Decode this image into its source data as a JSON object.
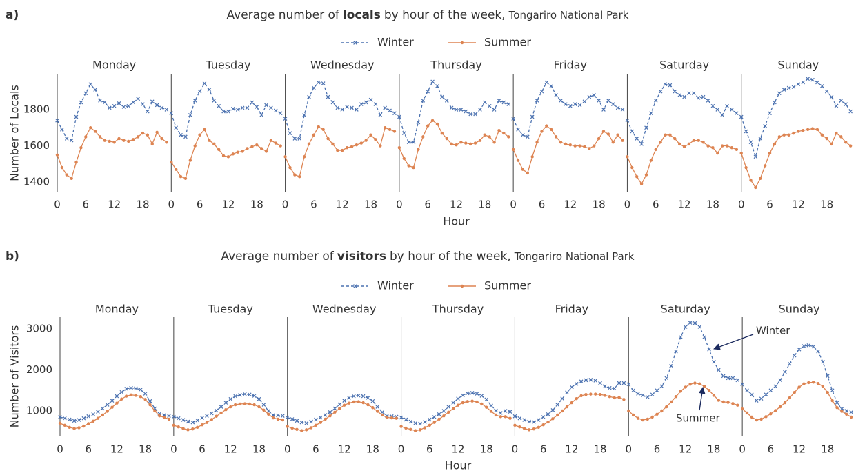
{
  "chart_data": [
    {
      "type": "line",
      "panel_label": "a)",
      "title": [
        "Average number of",
        "locals",
        "by hour of the week,",
        "Tongariro National Park"
      ],
      "ylabel": "Number of Locals",
      "xlabel": "Hour",
      "facets": [
        "Monday",
        "Tuesday",
        "Wednesday",
        "Thursday",
        "Friday",
        "Saturday",
        "Sunday"
      ],
      "x": [
        0,
        1,
        2,
        3,
        4,
        5,
        6,
        7,
        8,
        9,
        10,
        11,
        12,
        13,
        14,
        15,
        16,
        17,
        18,
        19,
        20,
        21,
        22,
        23
      ],
      "xlim": [
        0,
        24
      ],
      "xticks": [
        0,
        6,
        12,
        18
      ],
      "ylim": [
        1343,
        1998
      ],
      "yticks": [
        1400,
        1600,
        1800
      ],
      "grid": false,
      "series": [
        {
          "name": "Winter",
          "color": "#4c72b0",
          "marker": "x",
          "dashed": true,
          "values": [
            [
              1740,
              1690,
              1640,
              1630,
              1760,
              1840,
              1890,
              1940,
              1910,
              1850,
              1840,
              1810,
              1820,
              1835,
              1815,
              1820,
              1840,
              1860,
              1830,
              1790,
              1845,
              1825,
              1810,
              1800
            ],
            [
              1780,
              1700,
              1660,
              1650,
              1770,
              1850,
              1900,
              1945,
              1910,
              1850,
              1820,
              1790,
              1790,
              1805,
              1800,
              1810,
              1810,
              1840,
              1815,
              1770,
              1825,
              1810,
              1795,
              1780
            ],
            [
              1750,
              1670,
              1640,
              1640,
              1770,
              1870,
              1920,
              1950,
              1945,
              1870,
              1840,
              1810,
              1800,
              1815,
              1810,
              1800,
              1830,
              1840,
              1855,
              1830,
              1770,
              1810,
              1795,
              1780
            ],
            [
              1760,
              1670,
              1620,
              1620,
              1730,
              1850,
              1900,
              1955,
              1930,
              1870,
              1850,
              1810,
              1800,
              1800,
              1790,
              1775,
              1775,
              1800,
              1840,
              1820,
              1800,
              1850,
              1840,
              1830
            ],
            [
              1750,
              1690,
              1660,
              1650,
              1760,
              1850,
              1900,
              1950,
              1930,
              1880,
              1850,
              1830,
              1820,
              1830,
              1825,
              1845,
              1870,
              1880,
              1850,
              1800,
              1850,
              1830,
              1810,
              1800
            ],
            [
              1740,
              1680,
              1640,
              1610,
              1700,
              1780,
              1850,
              1900,
              1940,
              1935,
              1900,
              1880,
              1870,
              1890,
              1890,
              1865,
              1870,
              1850,
              1820,
              1800,
              1770,
              1820,
              1800,
              1780
            ],
            [
              1760,
              1680,
              1620,
              1540,
              1640,
              1710,
              1780,
              1840,
              1890,
              1910,
              1920,
              1925,
              1940,
              1950,
              1970,
              1965,
              1950,
              1930,
              1900,
              1870,
              1820,
              1850,
              1830,
              1790
            ]
          ]
        },
        {
          "name": "Summer",
          "color": "#dd8452",
          "marker": "o",
          "dashed": false,
          "values": [
            [
              1550,
              1480,
              1440,
              1420,
              1510,
              1590,
              1650,
              1700,
              1680,
              1650,
              1630,
              1625,
              1620,
              1640,
              1630,
              1625,
              1635,
              1650,
              1670,
              1660,
              1610,
              1675,
              1640,
              1620
            ],
            [
              1510,
              1470,
              1430,
              1420,
              1520,
              1600,
              1660,
              1690,
              1630,
              1610,
              1580,
              1545,
              1540,
              1555,
              1565,
              1570,
              1585,
              1595,
              1605,
              1585,
              1570,
              1630,
              1615,
              1600
            ],
            [
              1540,
              1480,
              1440,
              1430,
              1540,
              1610,
              1660,
              1705,
              1690,
              1640,
              1610,
              1575,
              1575,
              1590,
              1595,
              1605,
              1615,
              1630,
              1660,
              1635,
              1600,
              1700,
              1690,
              1680
            ],
            [
              1590,
              1530,
              1490,
              1480,
              1580,
              1650,
              1710,
              1740,
              1720,
              1670,
              1640,
              1610,
              1605,
              1620,
              1615,
              1610,
              1615,
              1630,
              1660,
              1650,
              1620,
              1685,
              1670,
              1650
            ],
            [
              1580,
              1520,
              1470,
              1450,
              1540,
              1620,
              1680,
              1710,
              1690,
              1650,
              1620,
              1610,
              1605,
              1600,
              1600,
              1595,
              1585,
              1600,
              1640,
              1680,
              1665,
              1620,
              1660,
              1630
            ],
            [
              1540,
              1480,
              1430,
              1390,
              1440,
              1520,
              1580,
              1620,
              1660,
              1660,
              1640,
              1610,
              1595,
              1610,
              1630,
              1630,
              1620,
              1600,
              1590,
              1560,
              1600,
              1600,
              1590,
              1580
            ],
            [
              1560,
              1480,
              1410,
              1370,
              1420,
              1490,
              1560,
              1610,
              1650,
              1660,
              1660,
              1670,
              1680,
              1685,
              1690,
              1695,
              1690,
              1660,
              1640,
              1610,
              1670,
              1650,
              1620,
              1600
            ]
          ]
        }
      ]
    },
    {
      "type": "line",
      "panel_label": "b)",
      "title": [
        "Average number of",
        "visitors",
        "by hour of the week,",
        "Tongariro National Park"
      ],
      "ylabel": "Number of Visitors",
      "xlabel": "Hour",
      "facets": [
        "Monday",
        "Tuesday",
        "Wednesday",
        "Thursday",
        "Friday",
        "Saturday",
        "Sunday"
      ],
      "x": [
        0,
        1,
        2,
        3,
        4,
        5,
        6,
        7,
        8,
        9,
        10,
        11,
        12,
        13,
        14,
        15,
        16,
        17,
        18,
        19,
        20,
        21,
        22,
        23
      ],
      "xlim": [
        0,
        24
      ],
      "xticks": [
        0,
        6,
        12,
        18
      ],
      "ylim": [
        395,
        3286
      ],
      "yticks": [
        1000,
        2000,
        3000
      ],
      "grid": false,
      "annotations": [
        {
          "text": "Winter"
        },
        {
          "text": "Summer"
        }
      ],
      "series": [
        {
          "name": "Winter",
          "color": "#4c72b0",
          "marker": "x",
          "dashed": true,
          "values": [
            [
              850,
              820,
              790,
              760,
              780,
              820,
              870,
              920,
              980,
              1060,
              1150,
              1250,
              1360,
              1460,
              1540,
              1560,
              1550,
              1520,
              1420,
              1240,
              1060,
              930,
              900,
              880
            ],
            [
              860,
              820,
              780,
              740,
              720,
              770,
              830,
              880,
              940,
              1010,
              1100,
              1200,
              1290,
              1360,
              1390,
              1410,
              1400,
              1370,
              1290,
              1150,
              1000,
              900,
              890,
              880
            ],
            [
              840,
              800,
              760,
              720,
              700,
              740,
              790,
              840,
              900,
              970,
              1060,
              1160,
              1250,
              1320,
              1360,
              1375,
              1360,
              1320,
              1240,
              1100,
              970,
              880,
              870,
              860
            ],
            [
              840,
              790,
              740,
              700,
              690,
              730,
              790,
              850,
              920,
              1000,
              1100,
              1200,
              1300,
              1380,
              1430,
              1440,
              1420,
              1370,
              1280,
              1130,
              1010,
              950,
              1000,
              980
            ],
            [
              870,
              820,
              780,
              740,
              730,
              780,
              850,
              920,
              1020,
              1150,
              1300,
              1450,
              1580,
              1660,
              1720,
              1750,
              1760,
              1740,
              1680,
              1600,
              1560,
              1550,
              1680,
              1680
            ],
            [
              1650,
              1500,
              1420,
              1380,
              1340,
              1400,
              1500,
              1600,
              1800,
              2100,
              2450,
              2800,
              3050,
              3150,
              3140,
              3050,
              2800,
              2500,
              2200,
              2000,
              1850,
              1800,
              1800,
              1750
            ],
            [
              1650,
              1500,
              1400,
              1250,
              1300,
              1400,
              1500,
              1600,
              1750,
              1950,
              2150,
              2350,
              2500,
              2580,
              2600,
              2570,
              2450,
              2200,
              1850,
              1500,
              1200,
              1050,
              1000,
              970
            ]
          ]
        },
        {
          "name": "Summer",
          "color": "#dd8452",
          "marker": "o",
          "dashed": false,
          "values": [
            [
              700,
              650,
              600,
              570,
              590,
              630,
              690,
              750,
              820,
              900,
              990,
              1090,
              1190,
              1290,
              1360,
              1390,
              1380,
              1350,
              1280,
              1150,
              1000,
              880,
              840,
              800
            ],
            [
              650,
              610,
              570,
              540,
              560,
              600,
              660,
              720,
              790,
              870,
              950,
              1030,
              1100,
              1150,
              1170,
              1175,
              1170,
              1150,
              1100,
              1020,
              920,
              830,
              800,
              780
            ],
            [
              620,
              580,
              550,
              520,
              540,
              590,
              650,
              720,
              800,
              880,
              970,
              1060,
              1140,
              1190,
              1220,
              1225,
              1200,
              1150,
              1080,
              990,
              900,
              840,
              830,
              820
            ],
            [
              620,
              580,
              550,
              520,
              540,
              590,
              650,
              720,
              800,
              880,
              970,
              1060,
              1140,
              1200,
              1230,
              1240,
              1220,
              1170,
              1090,
              990,
              900,
              860,
              860,
              820
            ],
            [
              650,
              610,
              570,
              540,
              560,
              600,
              660,
              730,
              810,
              900,
              1000,
              1100,
              1200,
              1300,
              1370,
              1400,
              1410,
              1410,
              1400,
              1380,
              1350,
              1320,
              1330,
              1280
            ],
            [
              1000,
              900,
              820,
              780,
              800,
              850,
              920,
              1000,
              1100,
              1220,
              1350,
              1480,
              1580,
              1650,
              1680,
              1660,
              1600,
              1500,
              1380,
              1260,
              1220,
              1210,
              1180,
              1140
            ],
            [
              1050,
              950,
              850,
              780,
              800,
              860,
              930,
              1010,
              1100,
              1200,
              1320,
              1450,
              1580,
              1660,
              1690,
              1700,
              1670,
              1600,
              1450,
              1250,
              1080,
              990,
              920,
              850
            ]
          ]
        }
      ]
    }
  ]
}
